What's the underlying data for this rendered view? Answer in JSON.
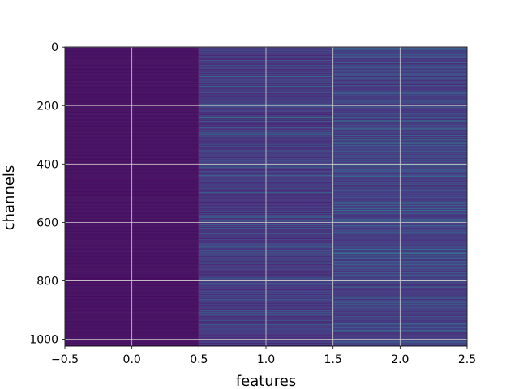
{
  "chart_data": {
    "type": "heatmap",
    "title": "",
    "xlabel": "features",
    "ylabel": "channels",
    "x_ticks": [
      "−0.5",
      "0.0",
      "0.5",
      "1.0",
      "1.5",
      "2.0",
      "2.5"
    ],
    "x_tick_values": [
      -0.5,
      0.0,
      0.5,
      1.0,
      1.5,
      2.0,
      2.5
    ],
    "y_ticks": [
      "0",
      "200",
      "400",
      "600",
      "800",
      "1000"
    ],
    "y_tick_values": [
      0,
      200,
      400,
      600,
      800,
      1000
    ],
    "xlim": [
      -0.5,
      2.5
    ],
    "ylim": [
      1023.5,
      -0.5
    ],
    "y_inverted": true,
    "grid": true,
    "n_rows": 1024,
    "n_cols": 3,
    "colormap": "viridis",
    "column_base_values": [
      0.05,
      0.2,
      0.22
    ],
    "highlight_rows": [
      {
        "channel": 10,
        "values": [
          0.06,
          0.3,
          0.55
        ]
      },
      {
        "channel": 100,
        "values": [
          0.06,
          0.45,
          0.25
        ]
      },
      {
        "channel": 205,
        "values": [
          0.06,
          0.55,
          0.5
        ]
      },
      {
        "channel": 240,
        "values": [
          0.07,
          0.75,
          0.6
        ]
      },
      {
        "channel": 410,
        "values": [
          0.06,
          0.55,
          0.6
        ]
      },
      {
        "channel": 470,
        "values": [
          0.06,
          0.35,
          0.55
        ]
      },
      {
        "channel": 595,
        "values": [
          0.06,
          0.6,
          0.5
        ]
      },
      {
        "channel": 715,
        "values": [
          0.06,
          0.5,
          0.55
        ]
      },
      {
        "channel": 800,
        "values": [
          0.06,
          0.45,
          0.5
        ]
      },
      {
        "channel": 950,
        "values": [
          0.06,
          0.55,
          0.6
        ]
      },
      {
        "channel": 1010,
        "values": [
          0.06,
          0.4,
          0.45
        ]
      }
    ]
  }
}
